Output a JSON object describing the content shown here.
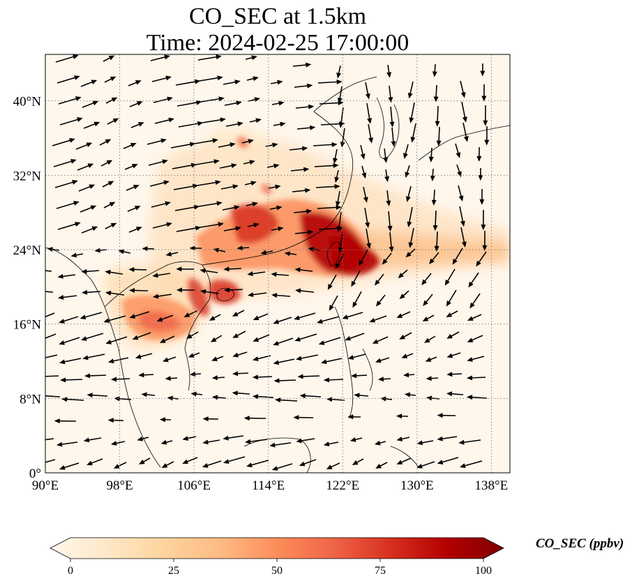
{
  "title": {
    "line1": "CO_SEC at 1.5km",
    "line2": "Time: 2024-02-25 17:00:00"
  },
  "map": {
    "lon_range": [
      90,
      140
    ],
    "lat_range": [
      0,
      45
    ],
    "lon_ticks": [
      {
        "value": 90,
        "label": "90°E"
      },
      {
        "value": 98,
        "label": "98°E"
      },
      {
        "value": 106,
        "label": "106°E"
      },
      {
        "value": 114,
        "label": "114°E"
      },
      {
        "value": 122,
        "label": "122°E"
      },
      {
        "value": 130,
        "label": "130°E"
      },
      {
        "value": 138,
        "label": "138°E"
      }
    ],
    "lat_ticks": [
      {
        "value": 0,
        "label": "0°"
      },
      {
        "value": 8,
        "label": "8°N"
      },
      {
        "value": 16,
        "label": "16°N"
      },
      {
        "value": 24,
        "label": "24°N"
      },
      {
        "value": 32,
        "label": "32°N"
      },
      {
        "value": 40,
        "label": "40°N"
      }
    ],
    "gridlines": true
  },
  "colorbar": {
    "label": "CO_SEC (ppbv)",
    "min": 0,
    "max": 100,
    "ticks": [
      {
        "value": 0,
        "label": "0"
      },
      {
        "value": 25,
        "label": "25"
      },
      {
        "value": 50,
        "label": "50"
      },
      {
        "value": 75,
        "label": "75"
      },
      {
        "value": 100,
        "label": "100"
      }
    ],
    "colors": [
      "#fff7ec",
      "#fee8c8",
      "#fdd49e",
      "#fdbb84",
      "#fc8d59",
      "#ef6548",
      "#d7301f",
      "#b30000",
      "#7f0000"
    ]
  }
}
